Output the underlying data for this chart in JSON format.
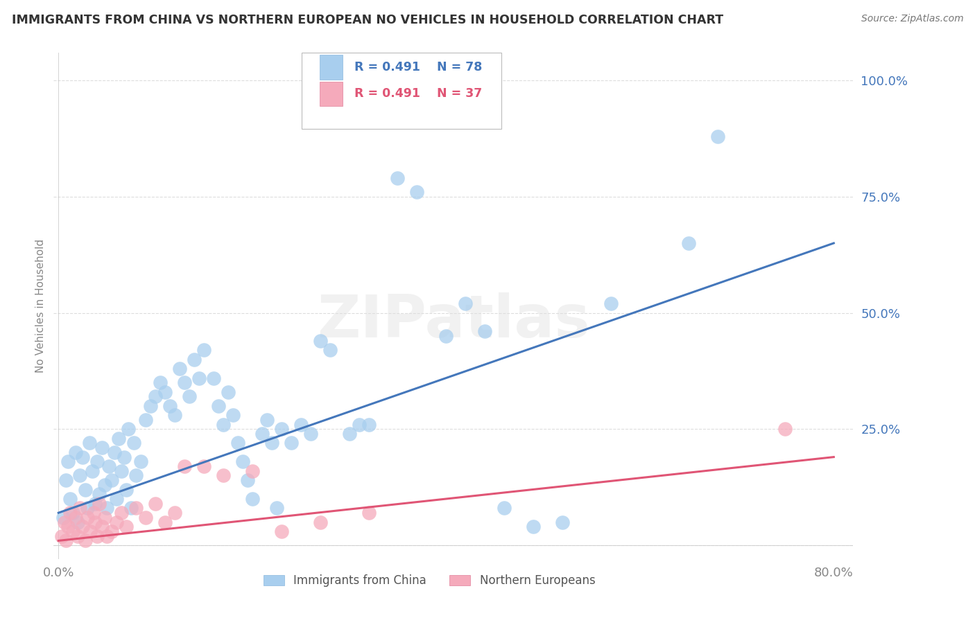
{
  "title": "IMMIGRANTS FROM CHINA VS NORTHERN EUROPEAN NO VEHICLES IN HOUSEHOLD CORRELATION CHART",
  "source": "Source: ZipAtlas.com",
  "ylabel": "No Vehicles in Household",
  "xlim": [
    -0.005,
    0.82
  ],
  "ylim": [
    -0.03,
    1.06
  ],
  "yticks": [
    0.0,
    0.25,
    0.5,
    0.75,
    1.0
  ],
  "ytick_labels": [
    "",
    "25.0%",
    "50.0%",
    "75.0%",
    "100.0%"
  ],
  "xtick_positions": [
    0.0,
    0.8
  ],
  "xtick_labels": [
    "0.0%",
    "80.0%"
  ],
  "china_color": "#A8CEEE",
  "northern_color": "#F5AABB",
  "china_line_color": "#4477BB",
  "northern_line_color": "#E05575",
  "china_r": 0.491,
  "china_n": 78,
  "northern_r": 0.491,
  "northern_n": 37,
  "watermark": "ZIPatlas",
  "background_color": "#FFFFFF",
  "china_scatter_x": [
    0.005,
    0.008,
    0.01,
    0.012,
    0.015,
    0.018,
    0.02,
    0.022,
    0.025,
    0.028,
    0.03,
    0.032,
    0.035,
    0.038,
    0.04,
    0.042,
    0.045,
    0.048,
    0.05,
    0.052,
    0.055,
    0.058,
    0.06,
    0.062,
    0.065,
    0.068,
    0.07,
    0.072,
    0.075,
    0.078,
    0.08,
    0.085,
    0.09,
    0.095,
    0.1,
    0.105,
    0.11,
    0.115,
    0.12,
    0.125,
    0.13,
    0.135,
    0.14,
    0.145,
    0.15,
    0.16,
    0.165,
    0.17,
    0.175,
    0.18,
    0.185,
    0.19,
    0.195,
    0.2,
    0.21,
    0.215,
    0.22,
    0.225,
    0.23,
    0.24,
    0.25,
    0.26,
    0.27,
    0.28,
    0.3,
    0.31,
    0.32,
    0.35,
    0.37,
    0.4,
    0.42,
    0.44,
    0.46,
    0.49,
    0.52,
    0.57,
    0.65,
    0.68
  ],
  "china_scatter_y": [
    0.06,
    0.14,
    0.18,
    0.1,
    0.07,
    0.2,
    0.05,
    0.15,
    0.19,
    0.12,
    0.08,
    0.22,
    0.16,
    0.09,
    0.18,
    0.11,
    0.21,
    0.13,
    0.08,
    0.17,
    0.14,
    0.2,
    0.1,
    0.23,
    0.16,
    0.19,
    0.12,
    0.25,
    0.08,
    0.22,
    0.15,
    0.18,
    0.27,
    0.3,
    0.32,
    0.35,
    0.33,
    0.3,
    0.28,
    0.38,
    0.35,
    0.32,
    0.4,
    0.36,
    0.42,
    0.36,
    0.3,
    0.26,
    0.33,
    0.28,
    0.22,
    0.18,
    0.14,
    0.1,
    0.24,
    0.27,
    0.22,
    0.08,
    0.25,
    0.22,
    0.26,
    0.24,
    0.44,
    0.42,
    0.24,
    0.26,
    0.26,
    0.79,
    0.76,
    0.45,
    0.52,
    0.46,
    0.08,
    0.04,
    0.05,
    0.52,
    0.65,
    0.88
  ],
  "northern_scatter_x": [
    0.003,
    0.006,
    0.008,
    0.01,
    0.012,
    0.015,
    0.018,
    0.02,
    0.022,
    0.025,
    0.028,
    0.03,
    0.033,
    0.036,
    0.038,
    0.04,
    0.042,
    0.045,
    0.048,
    0.05,
    0.055,
    0.06,
    0.065,
    0.07,
    0.08,
    0.09,
    0.1,
    0.11,
    0.12,
    0.13,
    0.15,
    0.17,
    0.2,
    0.23,
    0.27,
    0.32,
    0.75
  ],
  "northern_scatter_y": [
    0.02,
    0.05,
    0.01,
    0.04,
    0.07,
    0.03,
    0.06,
    0.02,
    0.08,
    0.04,
    0.01,
    0.06,
    0.03,
    0.07,
    0.05,
    0.02,
    0.09,
    0.04,
    0.06,
    0.02,
    0.03,
    0.05,
    0.07,
    0.04,
    0.08,
    0.06,
    0.09,
    0.05,
    0.07,
    0.17,
    0.17,
    0.15,
    0.16,
    0.03,
    0.05,
    0.07,
    0.25
  ],
  "china_line_x": [
    0.0,
    0.8
  ],
  "china_line_y": [
    0.07,
    0.65
  ],
  "northern_line_x": [
    0.0,
    0.8
  ],
  "northern_line_y": [
    0.01,
    0.19
  ],
  "grid_color": "#DDDDDD",
  "tick_color": "#888888"
}
